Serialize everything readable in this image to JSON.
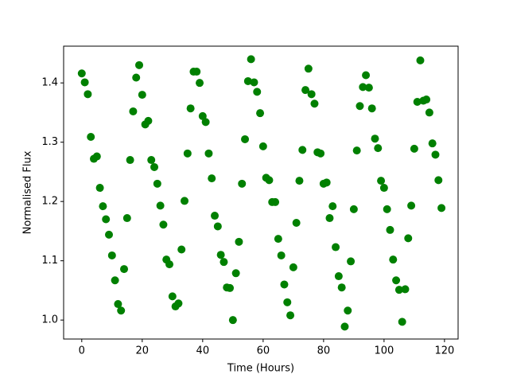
{
  "chart_data": {
    "type": "scatter",
    "xlabel": "Time (Hours)",
    "ylabel": "Normalised Flux",
    "color": "#008000",
    "x": [
      0,
      1,
      2,
      3,
      4,
      5,
      6,
      7,
      8,
      9,
      10,
      11,
      12,
      13,
      14,
      15,
      16,
      17,
      18,
      19,
      20,
      21,
      22,
      23,
      24,
      25,
      26,
      27,
      28,
      29,
      30,
      31,
      32,
      33,
      34,
      35,
      36,
      37,
      38,
      39,
      40,
      41,
      42,
      43,
      44,
      45,
      46,
      47,
      48,
      49,
      50,
      51,
      52,
      53,
      54,
      55,
      56,
      57,
      58,
      59,
      60,
      61,
      62,
      63,
      64,
      65,
      66,
      67,
      68,
      69,
      70,
      71,
      72,
      73,
      74,
      75,
      76,
      77,
      78,
      79,
      80,
      81,
      82,
      83,
      84,
      85,
      86,
      87,
      88,
      89,
      90,
      91,
      92,
      93,
      94,
      95,
      96,
      97,
      98,
      99,
      100,
      101,
      102,
      103,
      104,
      105,
      106,
      107,
      108,
      109,
      110,
      111,
      112,
      113,
      114,
      115,
      116,
      117,
      118,
      119
    ],
    "values": [
      1.416,
      1.401,
      1.381,
      1.309,
      1.272,
      1.276,
      1.223,
      1.192,
      1.17,
      1.144,
      1.109,
      1.067,
      1.027,
      1.016,
      1.086,
      1.172,
      1.27,
      1.352,
      1.409,
      1.43,
      1.38,
      1.33,
      1.336,
      1.27,
      1.258,
      1.23,
      1.193,
      1.161,
      1.102,
      1.094,
      1.04,
      1.023,
      1.028,
      1.119,
      1.201,
      1.281,
      1.357,
      1.419,
      1.419,
      1.4,
      1.344,
      1.334,
      1.281,
      1.239,
      1.176,
      1.158,
      1.11,
      1.098,
      1.055,
      1.054,
      1.0,
      1.079,
      1.132,
      1.23,
      1.305,
      1.403,
      1.44,
      1.401,
      1.385,
      1.349,
      1.293,
      1.24,
      1.236,
      1.199,
      1.199,
      1.137,
      1.109,
      1.06,
      1.03,
      1.008,
      1.089,
      1.164,
      1.235,
      1.287,
      1.388,
      1.424,
      1.381,
      1.365,
      1.283,
      1.281,
      1.23,
      1.232,
      1.172,
      1.192,
      1.123,
      1.074,
      1.055,
      0.989,
      1.016,
      1.099,
      1.187,
      1.286,
      1.361,
      1.393,
      1.413,
      1.392,
      1.357,
      1.306,
      1.29,
      1.235,
      1.223,
      1.187,
      1.152,
      1.102,
      1.067,
      1.051,
      0.997,
      1.052,
      1.138,
      1.193,
      1.289,
      1.368,
      1.438,
      1.37,
      1.372,
      1.35,
      1.298,
      1.279,
      1.236,
      1.189
    ],
    "xlim": [
      -6,
      124.5
    ],
    "ylim": [
      0.968,
      1.462
    ],
    "xticks": [
      0,
      20,
      40,
      60,
      80,
      100,
      120
    ],
    "yticks": [
      {
        "value": 1,
        "label": "1.0"
      },
      1.1,
      1.2,
      1.3,
      1.4
    ]
  }
}
